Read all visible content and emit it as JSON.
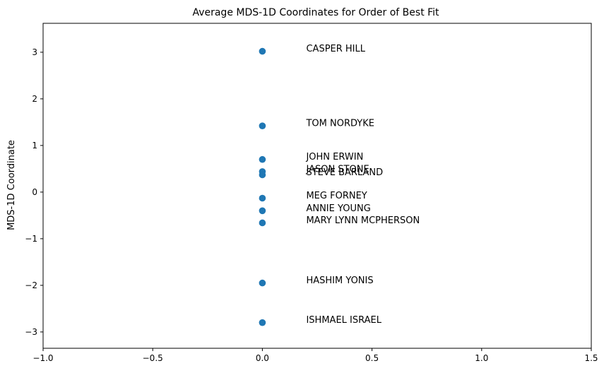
{
  "chart_data": {
    "type": "scatter",
    "title": "Average MDS-1D Coordinates for Order of Best Fit",
    "xlabel": "",
    "ylabel": "MDS-1D Coordinate",
    "xlim": [
      -1.0,
      1.5
    ],
    "ylim": [
      -3.35,
      3.62
    ],
    "xticks": [
      -1.0,
      -0.5,
      0.0,
      0.5,
      1.0,
      1.5
    ],
    "xtick_labels": [
      "−1.0",
      "−0.5",
      "0.0",
      "0.5",
      "1.0",
      "1.5"
    ],
    "yticks": [
      -3,
      -2,
      -1,
      0,
      1,
      2,
      3
    ],
    "ytick_labels": [
      "−3",
      "−2",
      "−1",
      "0",
      "1",
      "2",
      "3"
    ],
    "grid": false,
    "marker_color": "#1f77b4",
    "label_x": 0.2,
    "points": [
      {
        "label": "CASPER HILL",
        "x": 0.0,
        "y": 3.02
      },
      {
        "label": "TOM NORDYKE",
        "x": 0.0,
        "y": 1.42
      },
      {
        "label": "JOHN ERWIN",
        "x": 0.0,
        "y": 0.7
      },
      {
        "label": "JASON STONE",
        "x": 0.0,
        "y": 0.44
      },
      {
        "label": "STEVE BARLAND",
        "x": 0.0,
        "y": 0.37
      },
      {
        "label": "MEG FORNEY",
        "x": 0.0,
        "y": -0.13
      },
      {
        "label": "ANNIE YOUNG",
        "x": 0.0,
        "y": -0.4
      },
      {
        "label": "MARY LYNN MCPHERSON",
        "x": 0.0,
        "y": -0.66
      },
      {
        "label": "HASHIM YONIS",
        "x": 0.0,
        "y": -1.95
      },
      {
        "label": "ISHMAEL ISRAEL",
        "x": 0.0,
        "y": -2.8
      }
    ]
  }
}
